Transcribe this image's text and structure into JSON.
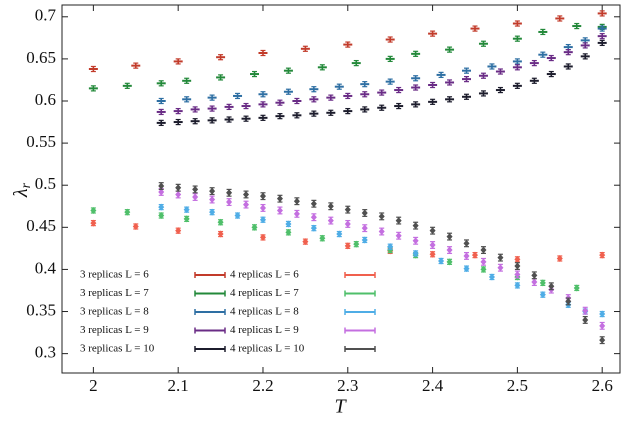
{
  "chart_data": {
    "type": "errorbar-scatter",
    "xlabel": "T",
    "ylabel": "λr",
    "xlim": [
      1.963,
      2.621
    ],
    "ylim": [
      0.277,
      0.714
    ],
    "xticks": [
      2,
      2.1,
      2.2,
      2.3,
      2.4,
      2.5,
      2.6
    ],
    "yticks": [
      0.3,
      0.35,
      0.4,
      0.45,
      0.5,
      0.55,
      0.6,
      0.65,
      0.7
    ],
    "legend": "lower left",
    "series": [
      {
        "name": "3 replicas L = 6",
        "color": "#c23b2a",
        "marker": "plus",
        "error": 0.003,
        "x": [
          2.0,
          2.05,
          2.1,
          2.15,
          2.2,
          2.25,
          2.3,
          2.35,
          2.4,
          2.45,
          2.5,
          2.55,
          2.6
        ],
        "values": [
          0.638,
          0.642,
          0.647,
          0.652,
          0.657,
          0.662,
          0.667,
          0.673,
          0.68,
          0.686,
          0.692,
          0.698,
          0.704
        ]
      },
      {
        "name": "3 replicas L = 7",
        "color": "#23893a",
        "marker": "plus",
        "error": 0.003,
        "x": [
          2.0,
          2.04,
          2.08,
          2.11,
          2.15,
          2.19,
          2.23,
          2.27,
          2.31,
          2.35,
          2.38,
          2.42,
          2.46,
          2.5,
          2.53,
          2.57,
          2.6
        ],
        "values": [
          0.615,
          0.618,
          0.621,
          0.624,
          0.628,
          0.632,
          0.636,
          0.64,
          0.645,
          0.65,
          0.656,
          0.661,
          0.668,
          0.674,
          0.682,
          0.689,
          0.688
        ]
      },
      {
        "name": "3 replicas L = 8",
        "color": "#2e6fa3",
        "marker": "plus",
        "error": 0.003,
        "x": [
          2.08,
          2.11,
          2.14,
          2.17,
          2.2,
          2.23,
          2.26,
          2.29,
          2.32,
          2.35,
          2.38,
          2.41,
          2.44,
          2.47,
          2.5,
          2.53,
          2.56,
          2.58,
          2.6
        ],
        "values": [
          0.6,
          0.602,
          0.604,
          0.606,
          0.608,
          0.611,
          0.614,
          0.617,
          0.62,
          0.623,
          0.627,
          0.631,
          0.636,
          0.641,
          0.647,
          0.655,
          0.664,
          0.672,
          0.686
        ]
      },
      {
        "name": "3 replicas L = 9",
        "color": "#6a2c86",
        "marker": "plus",
        "error": 0.003,
        "x": [
          2.08,
          2.1,
          2.12,
          2.14,
          2.16,
          2.18,
          2.2,
          2.22,
          2.24,
          2.26,
          2.28,
          2.3,
          2.32,
          2.34,
          2.36,
          2.38,
          2.4,
          2.42,
          2.44,
          2.46,
          2.48,
          2.5,
          2.52,
          2.54,
          2.56,
          2.58,
          2.6
        ],
        "values": [
          0.587,
          0.588,
          0.59,
          0.591,
          0.593,
          0.594,
          0.596,
          0.598,
          0.6,
          0.602,
          0.604,
          0.606,
          0.608,
          0.61,
          0.613,
          0.616,
          0.619,
          0.622,
          0.626,
          0.63,
          0.635,
          0.64,
          0.645,
          0.651,
          0.658,
          0.666,
          0.677
        ]
      },
      {
        "name": "3 replicas L = 10",
        "color": "#1c1c2c",
        "marker": "plus",
        "error": 0.003,
        "x": [
          2.08,
          2.1,
          2.12,
          2.14,
          2.16,
          2.18,
          2.2,
          2.22,
          2.24,
          2.26,
          2.28,
          2.3,
          2.32,
          2.34,
          2.36,
          2.38,
          2.4,
          2.42,
          2.44,
          2.46,
          2.48,
          2.5,
          2.52,
          2.54,
          2.56,
          2.58,
          2.6
        ],
        "values": [
          0.574,
          0.575,
          0.576,
          0.577,
          0.578,
          0.579,
          0.58,
          0.582,
          0.583,
          0.585,
          0.586,
          0.588,
          0.59,
          0.592,
          0.594,
          0.596,
          0.599,
          0.602,
          0.605,
          0.609,
          0.613,
          0.618,
          0.624,
          0.632,
          0.641,
          0.653,
          0.669
        ]
      },
      {
        "name": "4 replicas L = 6",
        "color": "#f0604e",
        "marker": "diamond",
        "error": 0.003,
        "x": [
          2.0,
          2.05,
          2.1,
          2.15,
          2.2,
          2.25,
          2.3,
          2.35,
          2.4,
          2.45,
          2.5,
          2.55,
          2.6
        ],
        "values": [
          0.455,
          0.451,
          0.446,
          0.442,
          0.438,
          0.433,
          0.428,
          0.422,
          0.418,
          0.417,
          0.412,
          0.413,
          0.417
        ]
      },
      {
        "name": "4 replicas L = 7",
        "color": "#4fbf6a",
        "marker": "diamond",
        "error": 0.003,
        "x": [
          2.0,
          2.04,
          2.08,
          2.11,
          2.15,
          2.19,
          2.23,
          2.27,
          2.31,
          2.35,
          2.38,
          2.42,
          2.46,
          2.5,
          2.53,
          2.57
        ],
        "values": [
          0.47,
          0.468,
          0.464,
          0.46,
          0.456,
          0.45,
          0.444,
          0.437,
          0.43,
          0.423,
          0.417,
          0.409,
          0.4,
          0.391,
          0.384,
          0.378
        ]
      },
      {
        "name": "4 replicas L = 8",
        "color": "#4fade6",
        "marker": "diamond",
        "error": 0.003,
        "x": [
          2.08,
          2.11,
          2.14,
          2.17,
          2.2,
          2.23,
          2.26,
          2.29,
          2.32,
          2.35,
          2.38,
          2.41,
          2.44,
          2.47,
          2.5,
          2.53,
          2.56,
          2.58,
          2.6
        ],
        "values": [
          0.474,
          0.471,
          0.468,
          0.464,
          0.459,
          0.454,
          0.449,
          0.442,
          0.435,
          0.427,
          0.419,
          0.41,
          0.401,
          0.391,
          0.381,
          0.37,
          0.358,
          0.35,
          0.347
        ]
      },
      {
        "name": "4 replicas L = 9",
        "color": "#c46fe0",
        "marker": "diamond",
        "error": 0.004,
        "x": [
          2.08,
          2.1,
          2.12,
          2.14,
          2.16,
          2.18,
          2.2,
          2.22,
          2.24,
          2.26,
          2.28,
          2.3,
          2.32,
          2.34,
          2.36,
          2.38,
          2.4,
          2.42,
          2.44,
          2.46,
          2.48,
          2.5,
          2.52,
          2.54,
          2.56,
          2.58,
          2.6
        ],
        "values": [
          0.492,
          0.489,
          0.486,
          0.483,
          0.48,
          0.477,
          0.473,
          0.47,
          0.466,
          0.462,
          0.458,
          0.454,
          0.449,
          0.445,
          0.44,
          0.434,
          0.429,
          0.423,
          0.416,
          0.409,
          0.402,
          0.394,
          0.385,
          0.376,
          0.366,
          0.351,
          0.333
        ]
      },
      {
        "name": "4 replicas L = 10",
        "color": "#505050",
        "marker": "diamond",
        "error": 0.004,
        "x": [
          2.08,
          2.1,
          2.12,
          2.14,
          2.16,
          2.18,
          2.2,
          2.22,
          2.24,
          2.26,
          2.28,
          2.3,
          2.32,
          2.34,
          2.36,
          2.38,
          2.4,
          2.42,
          2.44,
          2.46,
          2.48,
          2.5,
          2.52,
          2.54,
          2.56,
          2.58,
          2.6
        ],
        "values": [
          0.499,
          0.497,
          0.495,
          0.493,
          0.491,
          0.489,
          0.487,
          0.484,
          0.481,
          0.478,
          0.475,
          0.471,
          0.467,
          0.463,
          0.458,
          0.452,
          0.446,
          0.439,
          0.431,
          0.423,
          0.414,
          0.404,
          0.393,
          0.38,
          0.362,
          0.34,
          0.316
        ]
      }
    ]
  }
}
